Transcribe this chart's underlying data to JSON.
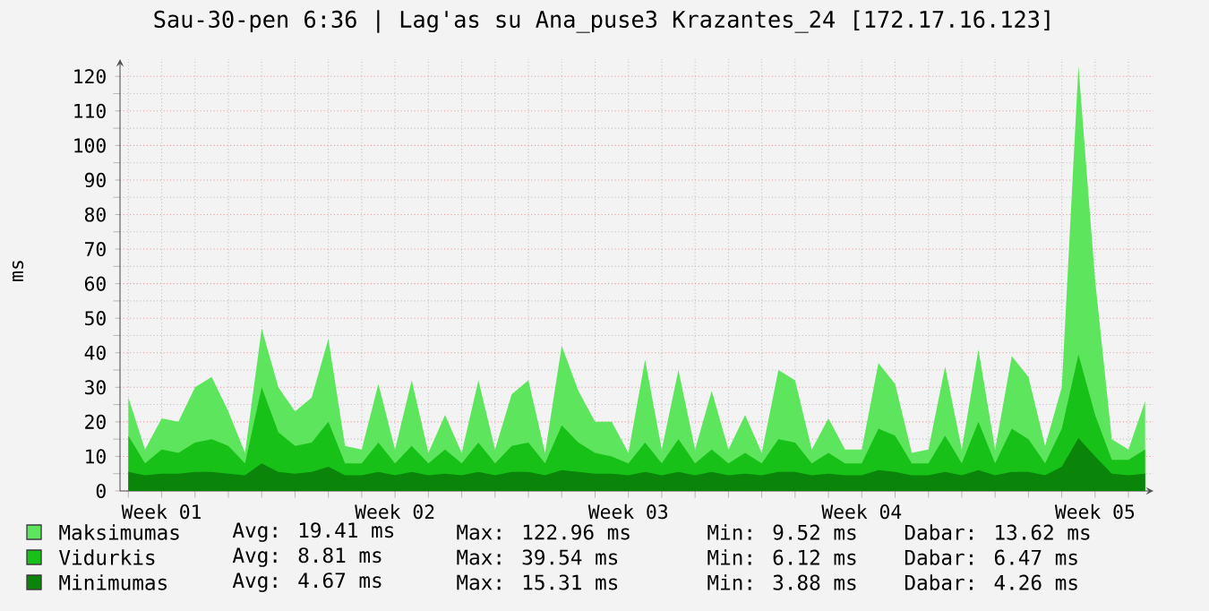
{
  "chart_data": {
    "type": "area",
    "title": "Sau-30-pen 6:36 | Lag'as su Ana_puse3 Krazantes_24 [172.17.16.123]",
    "ylabel": "ms",
    "categories": [
      null,
      null,
      "Week 01",
      null,
      null,
      null,
      null,
      null,
      null,
      null,
      null,
      null,
      null,
      null,
      null,
      null,
      "Week 02",
      null,
      null,
      null,
      null,
      null,
      null,
      null,
      null,
      null,
      null,
      null,
      null,
      null,
      "Week 03",
      null,
      null,
      null,
      null,
      null,
      null,
      null,
      null,
      null,
      null,
      null,
      null,
      null,
      "Week 04",
      null,
      null,
      null,
      null,
      null,
      null,
      null,
      null,
      null,
      null,
      null,
      null,
      null,
      "Week 05",
      null,
      null,
      null
    ],
    "series": [
      {
        "name": "Maksimumas",
        "color": "#5ee55e",
        "values": [
          27,
          12,
          21,
          20,
          30,
          33,
          23,
          11,
          47,
          30,
          23,
          27,
          44,
          13,
          12,
          31,
          12,
          32,
          11,
          22,
          11,
          32,
          12,
          28,
          32,
          11,
          42,
          29,
          20,
          20,
          11,
          38,
          12,
          35,
          12,
          29,
          12,
          22,
          11,
          35,
          32,
          12,
          21,
          12,
          12,
          37,
          31,
          11,
          12,
          36,
          12,
          41,
          12,
          39,
          33,
          13,
          30,
          123,
          61,
          15,
          12,
          26
        ]
      },
      {
        "name": "Vidurkis",
        "color": "#17c117",
        "values": [
          16,
          8,
          12,
          11,
          14,
          15,
          13,
          8,
          30,
          17,
          13,
          14,
          20,
          8,
          8,
          14,
          8,
          13,
          8,
          12,
          8,
          14,
          8,
          13,
          14,
          8,
          19,
          14,
          11,
          10,
          8,
          14,
          8,
          15,
          8,
          12,
          8,
          11,
          8,
          15,
          14,
          8,
          11,
          8,
          8,
          18,
          16,
          8,
          8,
          16,
          8,
          20,
          8,
          18,
          15,
          8,
          18,
          39.5,
          22,
          9,
          9,
          12
        ]
      },
      {
        "name": "Minimumas",
        "color": "#0a850a",
        "values": [
          5.5,
          4.5,
          5,
          5,
          5.5,
          5.5,
          5,
          4.5,
          8,
          5.5,
          5,
          5.5,
          7,
          4.5,
          4.5,
          5.5,
          4.5,
          5.5,
          4.5,
          5,
          4.5,
          5.5,
          4.5,
          5.5,
          5.5,
          4.5,
          6,
          5.5,
          5,
          5,
          4.5,
          5.5,
          4.5,
          5.5,
          4.5,
          5.5,
          4.5,
          5,
          4.5,
          5.5,
          5.5,
          4.5,
          5,
          4.5,
          4.5,
          6,
          5.5,
          4.5,
          4.5,
          5.5,
          4.5,
          6,
          4.5,
          5.5,
          5.5,
          4.5,
          7,
          15.3,
          10,
          5,
          4.5,
          5
        ]
      }
    ],
    "ylim": [
      0,
      125
    ],
    "yticks": [
      0,
      10,
      20,
      30,
      40,
      50,
      60,
      70,
      80,
      90,
      100,
      110,
      120
    ],
    "grid": true,
    "legend": "bottom",
    "annotations": [
      "Avg: 19.41 ms",
      "Max: 122.96 ms",
      "Min: 9.52 ms",
      "Dabar: 13.62 ms",
      "Avg: 8.81 ms",
      "Max: 39.54 ms",
      "Min: 6.12 ms",
      "Dabar: 6.47 ms",
      "Avg: 4.67 ms",
      "Max: 15.31 ms",
      "Min: 3.88 ms",
      "Dabar: 4.26 ms"
    ]
  }
}
